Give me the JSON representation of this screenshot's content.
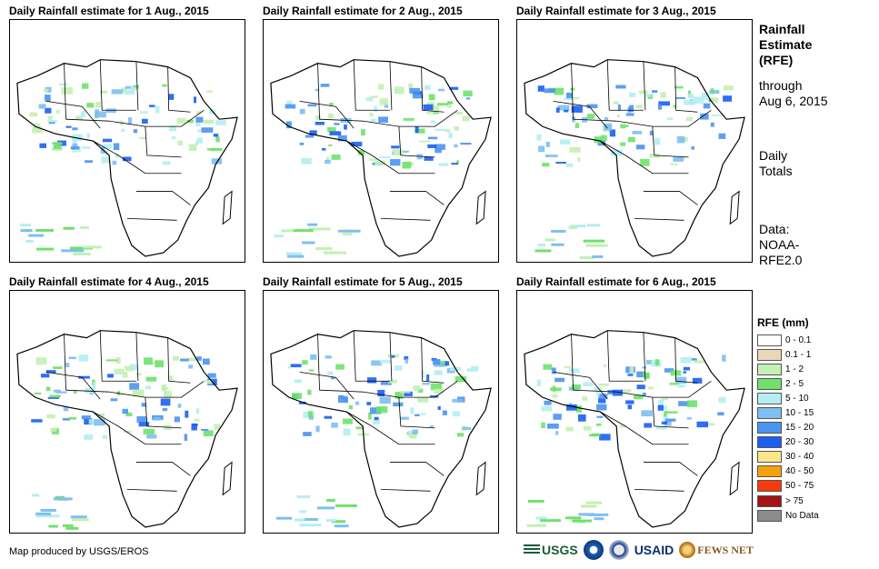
{
  "panels": [
    {
      "title": "Daily Rainfall estimate for 1 Aug., 2015"
    },
    {
      "title": "Daily Rainfall estimate for 2 Aug., 2015"
    },
    {
      "title": "Daily Rainfall estimate for 3 Aug., 2015"
    },
    {
      "title": "Daily Rainfall estimate for 4 Aug., 2015"
    },
    {
      "title": "Daily Rainfall estimate for 5 Aug., 2015"
    },
    {
      "title": "Daily Rainfall estimate for 6 Aug., 2015"
    }
  ],
  "sidebar": {
    "heading_lines": [
      "Rainfall",
      "Estimate",
      "(RFE)"
    ],
    "through_lines": [
      "through",
      "Aug 6, 2015"
    ],
    "totals_lines": [
      "Daily",
      "Totals"
    ],
    "data_lines": [
      "Data:",
      "NOAA-",
      "RFE2.0"
    ]
  },
  "legend": {
    "title": "RFE (mm)",
    "items": [
      {
        "label": "0 - 0.1",
        "color": "#ffffff"
      },
      {
        "label": "0.1 - 1",
        "color": "#e8d8b8"
      },
      {
        "label": "1 - 2",
        "color": "#c3f0b4"
      },
      {
        "label": "2 - 5",
        "color": "#6ee26a"
      },
      {
        "label": "5 - 10",
        "color": "#b4eef2"
      },
      {
        "label": "10 - 15",
        "color": "#7fbef2"
      },
      {
        "label": "15 - 20",
        "color": "#4b94f0"
      },
      {
        "label": "20 - 30",
        "color": "#1a5ef2"
      },
      {
        "label": "30 - 40",
        "color": "#fce58a"
      },
      {
        "label": "40 - 50",
        "color": "#f6a20a"
      },
      {
        "label": "50 - 75",
        "color": "#f83a0a"
      },
      {
        "label": "> 75",
        "color": "#a01414"
      },
      {
        "label": "No Data",
        "color": "#8c8c8c"
      }
    ]
  },
  "footer": {
    "credit": "Map produced by USGS/EROS"
  },
  "logos": {
    "usgs": "USGS",
    "usaid": "USAID",
    "fews": "FEWS NET"
  }
}
